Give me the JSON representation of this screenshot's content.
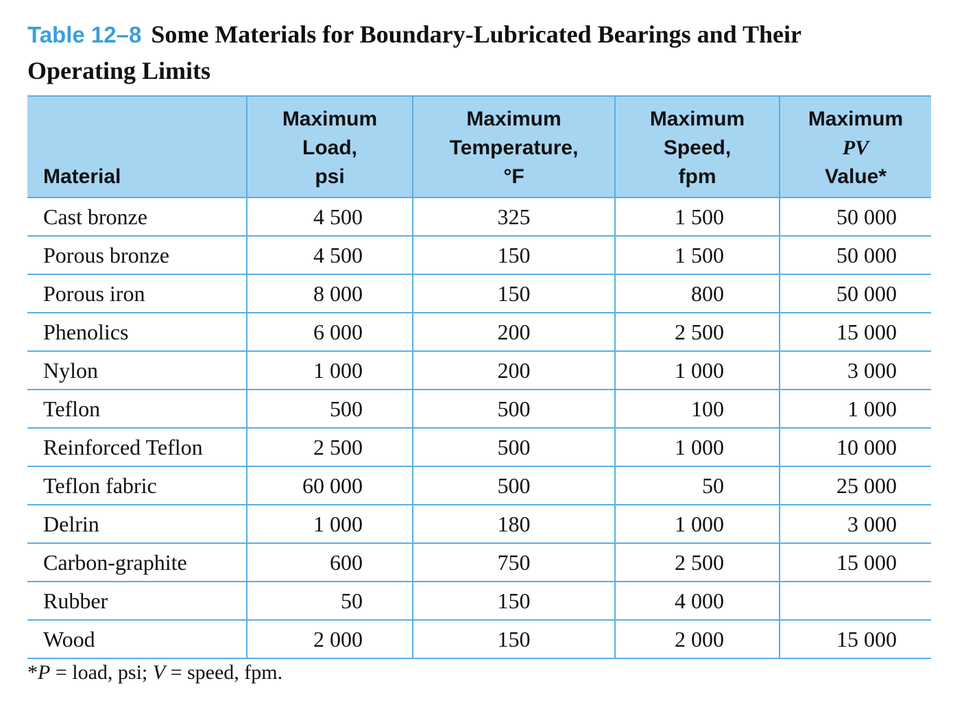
{
  "title": {
    "number": "Table 12–8",
    "line1": "Some Materials for Boundary-Lubricated Bearings and Their",
    "line2": "Operating Limits"
  },
  "columns": [
    {
      "lines": [
        "Material"
      ]
    },
    {
      "lines": [
        "Maximum",
        "Load,",
        "psi"
      ]
    },
    {
      "lines": [
        "Maximum",
        "Temperature,",
        "°F"
      ]
    },
    {
      "lines": [
        "Maximum",
        "Speed,",
        "fpm"
      ]
    },
    {
      "lines": [
        "Maximum",
        "PV",
        "Value*"
      ]
    }
  ],
  "rows": [
    {
      "material": "Cast bronze",
      "load": "4 500",
      "temp": "325",
      "speed": "1 500",
      "pv": "50 000"
    },
    {
      "material": "Porous bronze",
      "load": "4 500",
      "temp": "150",
      "speed": "1 500",
      "pv": "50 000"
    },
    {
      "material": "Porous iron",
      "load": "8 000",
      "temp": "150",
      "speed": "800",
      "pv": "50 000"
    },
    {
      "material": "Phenolics",
      "load": "6 000",
      "temp": "200",
      "speed": "2 500",
      "pv": "15 000"
    },
    {
      "material": "Nylon",
      "load": "1 000",
      "temp": "200",
      "speed": "1 000",
      "pv": "3 000"
    },
    {
      "material": "Teflon",
      "load": "500",
      "temp": "500",
      "speed": "100",
      "pv": "1 000"
    },
    {
      "material": "Reinforced Teflon",
      "load": "2 500",
      "temp": "500",
      "speed": "1 000",
      "pv": "10 000"
    },
    {
      "material": "Teflon fabric",
      "load": "60 000",
      "temp": "500",
      "speed": "50",
      "pv": "25 000"
    },
    {
      "material": "Delrin",
      "load": "1 000",
      "temp": "180",
      "speed": "1 000",
      "pv": "3 000"
    },
    {
      "material": "Carbon-graphite",
      "load": "600",
      "temp": "750",
      "speed": "2 500",
      "pv": "15 000"
    },
    {
      "material": "Rubber",
      "load": "50",
      "temp": "150",
      "speed": "4 000",
      "pv": ""
    },
    {
      "material": "Wood",
      "load": "2 000",
      "temp": "150",
      "speed": "2 000",
      "pv": "15 000"
    }
  ],
  "footnote": {
    "star": "*",
    "p_symbol": "P",
    "p_def": " = load, psi; ",
    "v_symbol": "V",
    "v_def": " = speed, fpm."
  },
  "colors": {
    "accent": "#3a9fdc",
    "header_bg": "#a6d5f2",
    "rule": "#5aaee2"
  }
}
